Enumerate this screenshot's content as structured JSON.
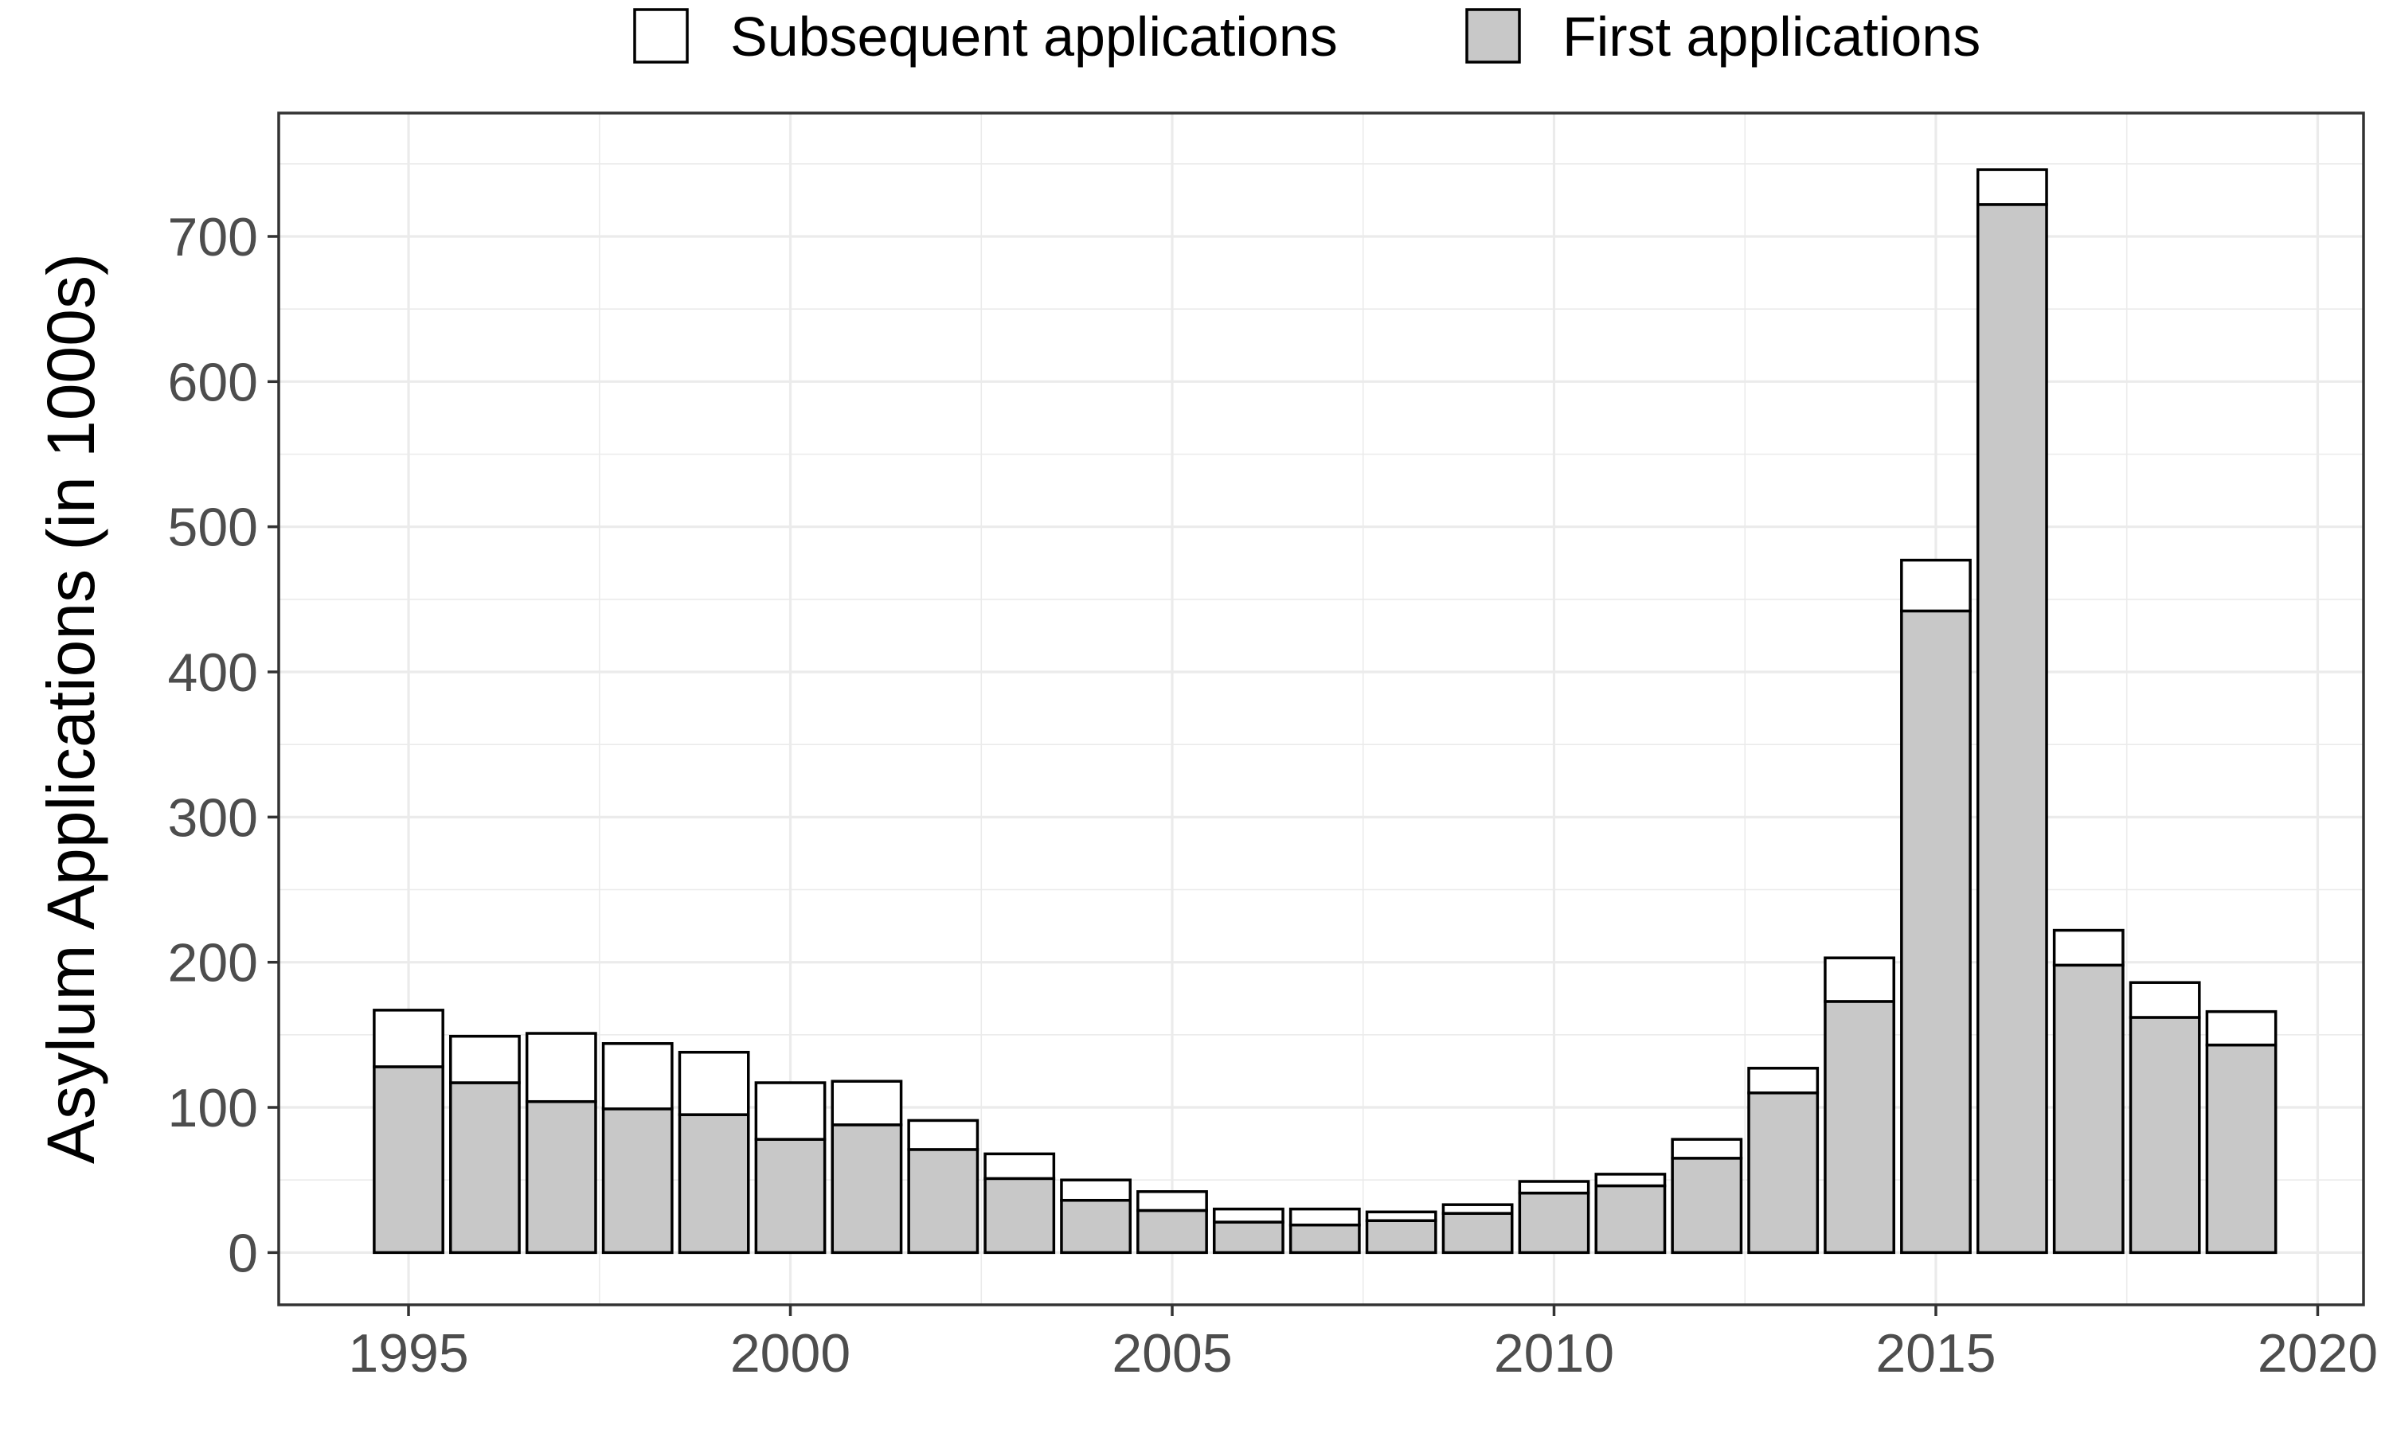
{
  "chart_data": {
    "type": "bar",
    "stacked": true,
    "title": "",
    "xlabel": "",
    "ylabel": "Asylum Applications (in 1000s)",
    "x": [
      1995,
      1996,
      1997,
      1998,
      1999,
      2000,
      2001,
      2002,
      2003,
      2004,
      2005,
      2006,
      2007,
      2008,
      2009,
      2010,
      2011,
      2012,
      2013,
      2014,
      2015,
      2016,
      2017,
      2018,
      2019
    ],
    "series": [
      {
        "name": "First applications",
        "color": "#c8c8c8",
        "values": [
          128,
          117,
          104,
          99,
          95,
          78,
          88,
          71,
          51,
          36,
          29,
          21,
          19,
          22,
          27,
          41,
          46,
          65,
          110,
          173,
          442,
          722,
          198,
          162,
          143
        ]
      },
      {
        "name": "Subsequent applications",
        "color": "#ffffff",
        "values": [
          39,
          32,
          47,
          45,
          43,
          39,
          30,
          20,
          17,
          14,
          13,
          9,
          11,
          6,
          6,
          8,
          8,
          13,
          17,
          30,
          35,
          24,
          24,
          24,
          23
        ]
      }
    ],
    "legend": {
      "position": "top",
      "order": [
        "Subsequent applications",
        "First applications"
      ]
    },
    "xlim": [
      1993.3,
      2020.6
    ],
    "ylim": [
      -36,
      785
    ],
    "x_ticks": [
      1995,
      2000,
      2005,
      2010,
      2015,
      2020
    ],
    "y_ticks": [
      0,
      100,
      200,
      300,
      400,
      500,
      600,
      700
    ],
    "grid": true,
    "theme": "bw"
  }
}
